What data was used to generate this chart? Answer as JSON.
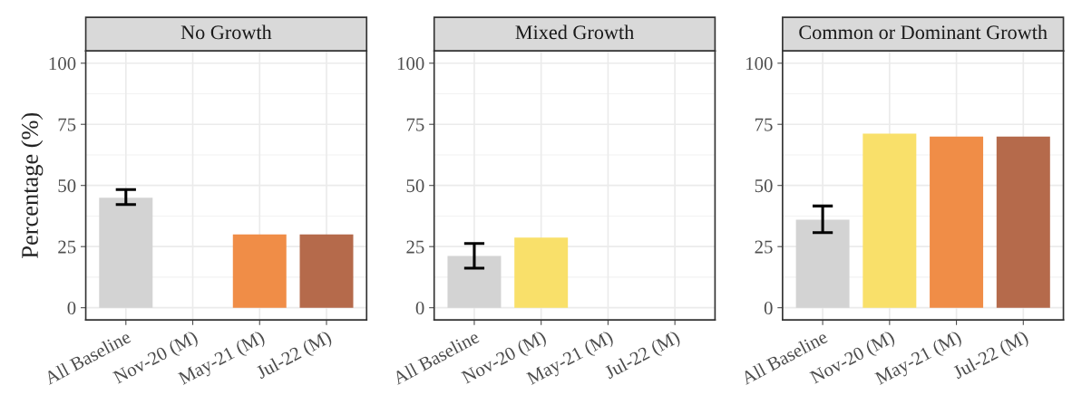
{
  "chart_data": [
    {
      "type": "bar",
      "title": "No Growth",
      "ylabel": "Percentage (%)",
      "categories": [
        "All Baseline",
        "Nov-20 (M)",
        "May-21 (M)",
        "Jul-22 (M)"
      ],
      "values": [
        45,
        0,
        30,
        30
      ],
      "colors": [
        "#d3d3d3",
        "#f9e06a",
        "#f08d47",
        "#b56a4b"
      ],
      "errors": [
        [
          42.2,
          48.3
        ],
        null,
        null,
        null
      ],
      "ylim": [
        -5,
        105
      ],
      "yticks": [
        0,
        25,
        50,
        75,
        100
      ],
      "grid": true
    },
    {
      "type": "bar",
      "title": "Mixed Growth",
      "categories": [
        "All Baseline",
        "Nov-20 (M)",
        "May-21 (M)",
        "Jul-22 (M)"
      ],
      "values": [
        21.2,
        28.7,
        0,
        0
      ],
      "colors": [
        "#d3d3d3",
        "#f9e06a",
        "#f08d47",
        "#b56a4b"
      ],
      "errors": [
        [
          16.2,
          26.3
        ],
        null,
        null,
        null
      ],
      "ylim": [
        -5,
        105
      ],
      "yticks": [
        0,
        25,
        50,
        75,
        100
      ],
      "grid": true
    },
    {
      "type": "bar",
      "title": "Common or Dominant Growth",
      "categories": [
        "All Baseline",
        "Nov-20 (M)",
        "May-21 (M)",
        "Jul-22 (M)"
      ],
      "values": [
        36,
        71.2,
        70,
        70
      ],
      "colors": [
        "#d3d3d3",
        "#f9e06a",
        "#f08d47",
        "#b56a4b"
      ],
      "errors": [
        [
          30.7,
          41.6
        ],
        null,
        null,
        null
      ],
      "ylim": [
        -5,
        105
      ],
      "yticks": [
        0,
        25,
        50,
        75,
        100
      ],
      "grid": true
    }
  ]
}
